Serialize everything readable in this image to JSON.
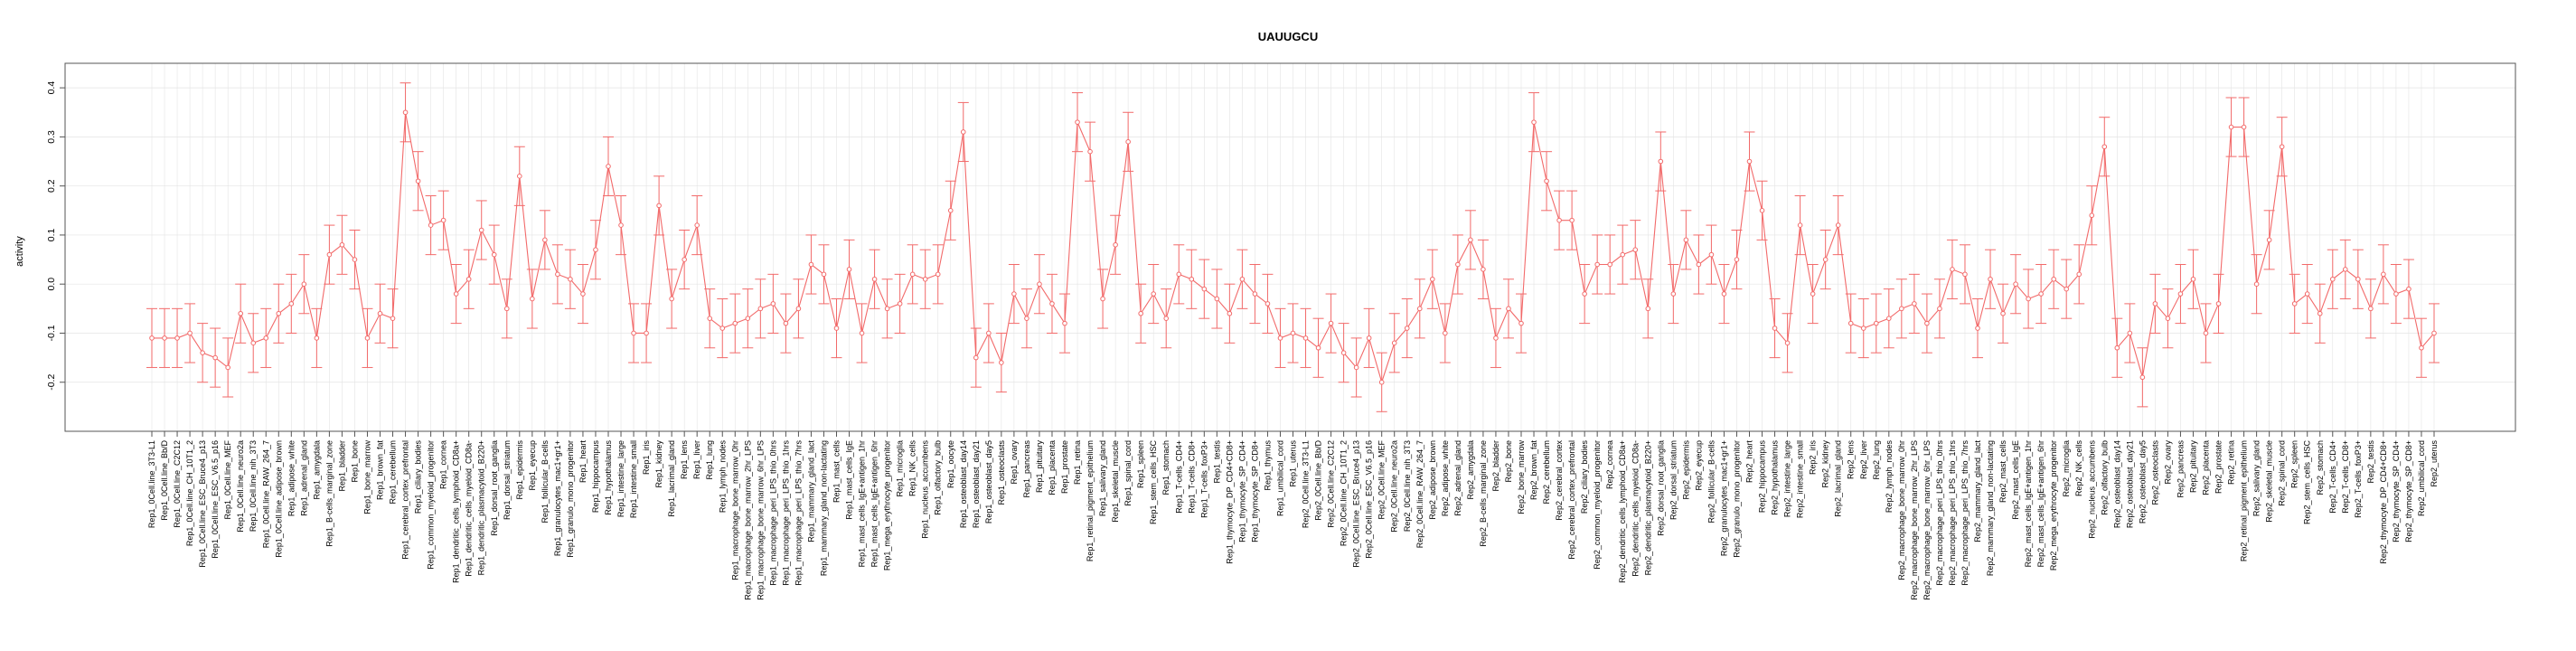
{
  "chart_data": {
    "type": "line",
    "title": "UAUUGCU",
    "xlabel": "",
    "ylabel": "activity",
    "ylim": [
      -0.3,
      0.45
    ],
    "yticks": [
      -0.2,
      -0.1,
      0.0,
      0.1,
      0.2,
      0.3,
      0.4
    ],
    "ytick_labels": [
      "-0.2",
      "-0.1",
      "0.0",
      "0.1",
      "0.2",
      "0.3",
      "0.4"
    ],
    "grid": true,
    "legend": "none",
    "colors": {
      "series": "#f26a6a",
      "grid": "#e4e4e4",
      "frame": "#555555"
    },
    "error_halfwidth": 0.06,
    "categories": [
      "Rep1_0Cell.line_3T3-L1",
      "Rep1_0Cell.line_Bb/D",
      "Rep1_0Cell.line_C2C12",
      "Rep1_0Cell.line_CH_10T1_2",
      "Rep1_0Cell.line_ESC_Bruce4_p13",
      "Rep1_0Cell.line_ESC_V6.5_p16",
      "Rep1_0Cell.line_MEF",
      "Rep1_0Cell.line_neuro2a",
      "Rep1_0Cell.line_nih_3T3",
      "Rep1_0Cell.line_RAW_264_7",
      "Rep1_0Cell.line_adipose_brown",
      "Rep1_adipose_white",
      "Rep1_adrenal_gland",
      "Rep1_amygdala",
      "Rep1_B-cells_marginal_zone",
      "Rep1_bladder",
      "Rep1_bone",
      "Rep1_bone_marrow",
      "Rep1_brown_fat",
      "Rep1_cerebellum",
      "Rep1_cerebral_cortex_prefrontal",
      "Rep1_ciliary_bodies",
      "Rep1_common_myeloid_progenitor",
      "Rep1_cornea",
      "Rep1_dendritic_cells_lymphoid_CD8a+",
      "Rep1_dendritic_cells_myeloid_CD8a-",
      "Rep1_dendritic_plasmacytoid_B220+",
      "Rep1_dorsal_root_ganglia",
      "Rep1_dorsal_striatum",
      "Rep1_epidermis",
      "Rep1_eyecup",
      "Rep1_follicular_B-cells",
      "Rep1_granulocytes_mac1+gr1+",
      "Rep1_granulo_mono_progenitor",
      "Rep1_heart",
      "Rep1_hippocampus",
      "Rep1_hypothalamus",
      "Rep1_intestine_large",
      "Rep1_intestine_small",
      "Rep1_iris",
      "Rep1_kidney",
      "Rep1_lacrimal_gland",
      "Rep1_lens",
      "Rep1_liver",
      "Rep1_lung",
      "Rep1_lymph_nodes",
      "Rep1_macrophage_bone_marrow_0hr",
      "Rep1_macrophage_bone_marrow_2hr_LPS",
      "Rep1_macrophage_bone_marrow_6hr_LPS",
      "Rep1_macrophage_peri_LPS_thio_0hrs",
      "Rep1_macrophage_peri_LPS_thio_1hrs",
      "Rep1_macrophage_peri_LPS_thio_7hrs",
      "Rep1_mammary_gland_lact",
      "Rep1_mammary_gland_non-lactating",
      "Rep1_mast_cells",
      "Rep1_mast_cells_IgE",
      "Rep1_mast_cells_IgE+antigen_1hr",
      "Rep1_mast_cells_IgE+antigen_6hr",
      "Rep1_mega_erythrocyte_progenitor",
      "Rep1_microglia",
      "Rep1_NK_cells",
      "Rep1_nucleus_accumbens",
      "Rep1_olfactory_bulb",
      "Rep1_oocyte",
      "Rep1_osteoblast_day14",
      "Rep1_osteoblast_day21",
      "Rep1_osteoblast_day5",
      "Rep1_osteoclasts",
      "Rep1_ovary",
      "Rep1_pancreas",
      "Rep1_pituitary",
      "Rep1_placenta",
      "Rep1_prostate",
      "Rep1_retina",
      "Rep1_retinal_pigment_epithelium",
      "Rep1_salivary_gland",
      "Rep1_skeletal_muscle",
      "Rep1_spinal_cord",
      "Rep1_spleen",
      "Rep1_stem_cells_HSC",
      "Rep1_stomach",
      "Rep1_T-cells_CD4+",
      "Rep1_T-cells_CD8+",
      "Rep1_T-cells_foxP3+",
      "Rep1_testis",
      "Rep1_thymocyte_DP_CD4+CD8+",
      "Rep1_thymocyte_SP_CD4+",
      "Rep1_thymocyte_SP_CD8+",
      "Rep1_thymus",
      "Rep1_umbilical_cord",
      "Rep1_uterus",
      "Rep2_0Cell.line_3T3-L1",
      "Rep2_0Cell.line_Bb/D",
      "Rep2_0Cell.line_C2C12",
      "Rep2_0Cell.line_CH_10T1_2",
      "Rep2_0Cell.line_ESC_Bruce4_p13",
      "Rep2_0Cell.line_ESC_V6.5_p16",
      "Rep2_0Cell.line_MEF",
      "Rep2_0Cell.line_neuro2a",
      "Rep2_0Cell.line_nih_3T3",
      "Rep2_0Cell.line_RAW_264_7",
      "Rep2_adipose_brown",
      "Rep2_adipose_white",
      "Rep2_adrenal_gland",
      "Rep2_amygdala",
      "Rep2_B-cells_marginal_zone",
      "Rep2_bladder",
      "Rep2_bone",
      "Rep2_bone_marrow",
      "Rep2_brown_fat",
      "Rep2_cerebellum",
      "Rep2_cerebral_cortex",
      "Rep2_cerebral_cortex_prefrontal",
      "Rep2_ciliary_bodies",
      "Rep2_common_myeloid_progenitor",
      "Rep2_cornea",
      "Rep2_dendritic_cells_lymphoid_CD8a+",
      "Rep2_dendritic_cells_myeloid_CD8a-",
      "Rep2_dendritic_plasmacytoid_B220+",
      "Rep2_dorsal_root_ganglia",
      "Rep2_dorsal_striatum",
      "Rep2_epidermis",
      "Rep2_eyecup",
      "Rep2_follicular_B-cells",
      "Rep2_granulocytes_mac1+gr1+",
      "Rep2_granulo_mono_progenitor",
      "Rep2_heart",
      "Rep2_hippocampus",
      "Rep2_hypothalamus",
      "Rep2_intestine_large",
      "Rep2_intestine_small",
      "Rep2_iris",
      "Rep2_kidney",
      "Rep2_lacrimal_gland",
      "Rep2_lens",
      "Rep2_liver",
      "Rep2_lung",
      "Rep2_lymph_nodes",
      "Rep2_macrophage_bone_marrow_0hr",
      "Rep2_macrophage_bone_marrow_2hr_LPS",
      "Rep2_macrophage_bone_marrow_6hr_LPS",
      "Rep2_macrophage_peri_LPS_thio_0hrs",
      "Rep2_macrophage_peri_LPS_thio_1hrs",
      "Rep2_macrophage_peri_LPS_thio_7hrs",
      "Rep2_mammary_gland_lact",
      "Rep2_mammary_gland_non-lactating",
      "Rep2_mast_cells",
      "Rep2_mast_cells_IgE",
      "Rep2_mast_cells_IgE+antigen_1hr",
      "Rep2_mast_cells_IgE+antigen_6hr",
      "Rep2_mega_erythrocyte_progenitor",
      "Rep2_microglia",
      "Rep2_NK_cells",
      "Rep2_nucleus_accumbens",
      "Rep2_olfactory_bulb",
      "Rep2_osteoblast_day14",
      "Rep2_osteoblast_day21",
      "Rep2_osteoblast_day5",
      "Rep2_osteoclasts",
      "Rep2_ovary",
      "Rep2_pancreas",
      "Rep2_pituitary",
      "Rep2_placenta",
      "Rep2_prostate",
      "Rep2_retina",
      "Rep2_retinal_pigment_epithelium",
      "Rep2_salivary_gland",
      "Rep2_skeletal_muscle",
      "Rep2_spinal_cord",
      "Rep2_spleen",
      "Rep2_stem_cells_HSC",
      "Rep2_stomach",
      "Rep2_T-cells_CD4+",
      "Rep2_T-cells_CD8+",
      "Rep2_T-cells_foxP3+",
      "Rep2_testis",
      "Rep2_thymocyte_DP_CD4+CD8+",
      "Rep2_thymocyte_SP_CD4+",
      "Rep2_thymocyte_SP_CD8+",
      "Rep2_umbilical_cord",
      "Rep2_uterus"
    ],
    "values": [
      -0.11,
      -0.11,
      -0.11,
      -0.1,
      -0.14,
      -0.15,
      -0.17,
      -0.06,
      -0.12,
      -0.11,
      -0.06,
      -0.04,
      0.0,
      -0.11,
      0.06,
      0.08,
      0.05,
      -0.11,
      -0.06,
      -0.07,
      0.35,
      0.21,
      0.12,
      0.13,
      -0.02,
      0.01,
      0.11,
      0.06,
      -0.05,
      0.22,
      -0.03,
      0.09,
      0.02,
      0.01,
      -0.02,
      0.07,
      0.24,
      0.12,
      -0.1,
      -0.1,
      0.16,
      -0.03,
      0.05,
      0.12,
      -0.07,
      -0.09,
      -0.08,
      -0.07,
      -0.05,
      -0.04,
      -0.08,
      -0.05,
      0.04,
      0.02,
      -0.09,
      0.03,
      -0.1,
      0.01,
      -0.05,
      -0.04,
      0.02,
      0.01,
      0.02,
      0.15,
      0.31,
      -0.15,
      -0.1,
      -0.16,
      -0.02,
      -0.07,
      0.0,
      -0.04,
      -0.08,
      0.33,
      0.27,
      -0.03,
      0.08,
      0.29,
      -0.06,
      -0.02,
      -0.07,
      0.02,
      0.01,
      -0.01,
      -0.03,
      -0.06,
      0.01,
      -0.02,
      -0.04,
      -0.11,
      -0.1,
      -0.11,
      -0.13,
      -0.08,
      -0.14,
      -0.17,
      -0.11,
      -0.2,
      -0.12,
      -0.09,
      -0.05,
      0.01,
      -0.1,
      0.04,
      0.09,
      0.03,
      -0.11,
      -0.05,
      -0.08,
      0.33,
      0.21,
      0.13,
      0.13,
      -0.02,
      0.04,
      0.04,
      0.06,
      0.07,
      -0.05,
      0.25,
      -0.02,
      0.09,
      0.04,
      0.06,
      -0.02,
      0.05,
      0.25,
      0.15,
      -0.09,
      -0.12,
      0.12,
      -0.02,
      0.05,
      0.12,
      -0.08,
      -0.09,
      -0.08,
      -0.07,
      -0.05,
      -0.04,
      -0.08,
      -0.05,
      0.03,
      0.02,
      -0.09,
      0.01,
      -0.06,
      0.0,
      -0.03,
      -0.02,
      0.01,
      -0.01,
      0.02,
      0.14,
      0.28,
      -0.13,
      -0.1,
      -0.19,
      -0.04,
      -0.07,
      -0.02,
      0.01,
      -0.1,
      -0.04,
      0.32,
      0.32,
      0.0,
      0.09,
      0.28,
      -0.04,
      -0.02,
      -0.06,
      0.01,
      0.03,
      0.01,
      -0.05,
      0.02,
      -0.02,
      -0.01,
      -0.13,
      -0.1
    ]
  }
}
